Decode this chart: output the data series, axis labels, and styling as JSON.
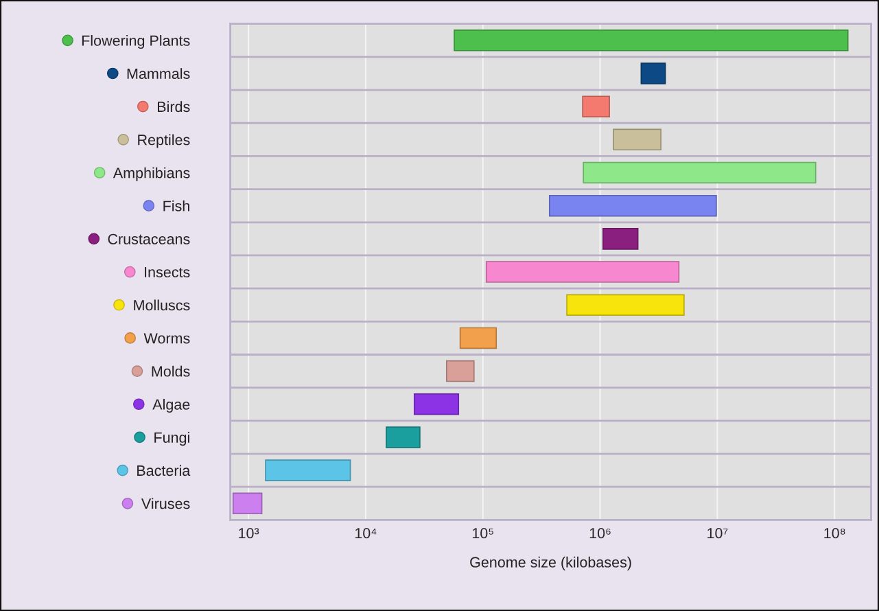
{
  "chart_data": {
    "type": "bar",
    "orientation": "horizontal",
    "xlabel": "Genome size (kilobases)",
    "categories": [
      "Flowering Plants",
      "Mammals",
      "Birds",
      "Reptiles",
      "Amphibians",
      "Fish",
      "Crustaceans",
      "Insects",
      "Molluscs",
      "Worms",
      "Molds",
      "Algae",
      "Fungi",
      "Bacteria",
      "Viruses"
    ],
    "base": [
      57000,
      2240000,
      710000,
      1300000,
      720000,
      370000,
      1060000,
      107000,
      520000,
      64000,
      49000,
      26000,
      15000,
      1400,
      740
    ],
    "values": [
      129943000,
      1360000,
      490000,
      2000000,
      68280000,
      9430000,
      1040000,
      4593000,
      4680000,
      66000,
      35000,
      36000,
      14000,
      6000,
      560
    ],
    "colors": [
      "#4cbf4c",
      "#0d4a85",
      "#f47a70",
      "#c9bf9a",
      "#8ee88a",
      "#7a84f0",
      "#8a1f80",
      "#f787cf",
      "#f7e40c",
      "#f3a04d",
      "#d9a09a",
      "#8c33e6",
      "#1a9e9e",
      "#5cc4e6",
      "#cc80f0"
    ],
    "log": "x",
    "xlim": [
      700,
      205000000
    ],
    "xticks": [
      {
        "value": 1000,
        "label": "10³"
      },
      {
        "value": 10000,
        "label": "10⁴"
      },
      {
        "value": 100000,
        "label": "10⁵"
      },
      {
        "value": 1000000,
        "label": "10⁶"
      },
      {
        "value": 10000000,
        "label": "10⁷"
      },
      {
        "value": 100000000,
        "label": "10⁸"
      }
    ],
    "grid": true,
    "marker": "circle"
  }
}
